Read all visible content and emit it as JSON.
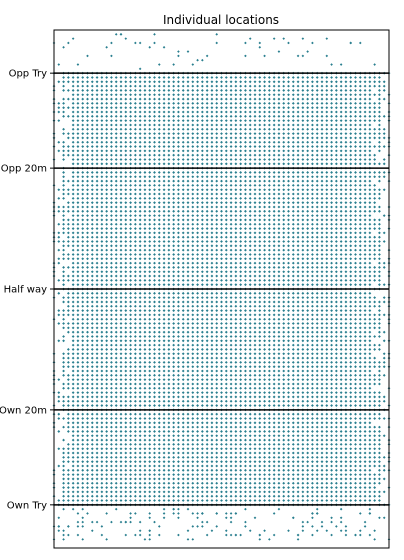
{
  "chart_data": {
    "type": "scatter",
    "title": "Individual locations",
    "xlabel": "",
    "ylabel": "",
    "grid": false,
    "legend": "none",
    "marker_color": "#2a7f8f",
    "marker": "diamond",
    "xlim": [
      0,
      70
    ],
    "ylim": [
      -10,
      110
    ],
    "reference_lines": [
      {
        "y": 0,
        "label": "Own Try"
      },
      {
        "y": 22,
        "label": "Own 20m"
      },
      {
        "y": 50,
        "label": "Half way"
      },
      {
        "y": 78,
        "label": "Opp 20m"
      },
      {
        "y": 100,
        "label": "Opp Try"
      }
    ],
    "grid_of_points": {
      "x_step": 1,
      "y_step": 1,
      "x_range": [
        0,
        70
      ],
      "y_range": [
        0,
        100
      ],
      "density": "dense"
    }
  }
}
